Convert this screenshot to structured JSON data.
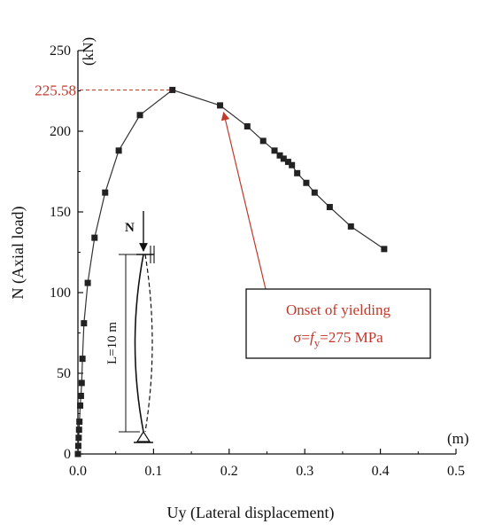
{
  "chart_data": {
    "type": "line",
    "xlabel": "Uy (Lateral displacement)",
    "ylabel": "N (Axial load)",
    "x_unit": "(m)",
    "y_unit": "(kN)",
    "xlim": [
      0,
      0.5
    ],
    "ylim": [
      0,
      250
    ],
    "x_ticks": [
      "0.0",
      "0.1",
      "0.2",
      "0.3",
      "0.4",
      "0.5"
    ],
    "y_ticks": [
      "0",
      "50",
      "100",
      "150",
      "200",
      "250"
    ],
    "grid": false,
    "series": [
      {
        "marker": "square",
        "color": "#222222",
        "points": [
          [
            0.0,
            0.0
          ],
          [
            0.0005,
            5
          ],
          [
            0.001,
            10
          ],
          [
            0.0015,
            15
          ],
          [
            0.002,
            20
          ],
          [
            0.003,
            30
          ],
          [
            0.004,
            36
          ],
          [
            0.005,
            44
          ],
          [
            0.006,
            59
          ],
          [
            0.008,
            81
          ],
          [
            0.013,
            106
          ],
          [
            0.022,
            134
          ],
          [
            0.036,
            162
          ],
          [
            0.054,
            188
          ],
          [
            0.082,
            210
          ],
          [
            0.125,
            225.58
          ],
          [
            0.188,
            216
          ],
          [
            0.224,
            203
          ],
          [
            0.245,
            194
          ],
          [
            0.26,
            188
          ],
          [
            0.267,
            185
          ],
          [
            0.272,
            183
          ],
          [
            0.278,
            181
          ],
          [
            0.283,
            179
          ],
          [
            0.29,
            174
          ],
          [
            0.302,
            168
          ],
          [
            0.313,
            162
          ],
          [
            0.333,
            153
          ],
          [
            0.361,
            141
          ],
          [
            0.405,
            127
          ]
        ]
      }
    ],
    "peak": {
      "value": 225.58,
      "label": "225.58",
      "x": 0.125
    },
    "annotation": {
      "line1": "Onset of yielding",
      "line2_prefix": "σ=",
      "line2_f": "f",
      "line2_sub": "y",
      "line2_suffix": "=275 MPa",
      "target_x": 0.188,
      "target_y": 216,
      "color": "#c0392b"
    },
    "inset": {
      "load_label": "N",
      "length_label": "L=10 m"
    }
  }
}
